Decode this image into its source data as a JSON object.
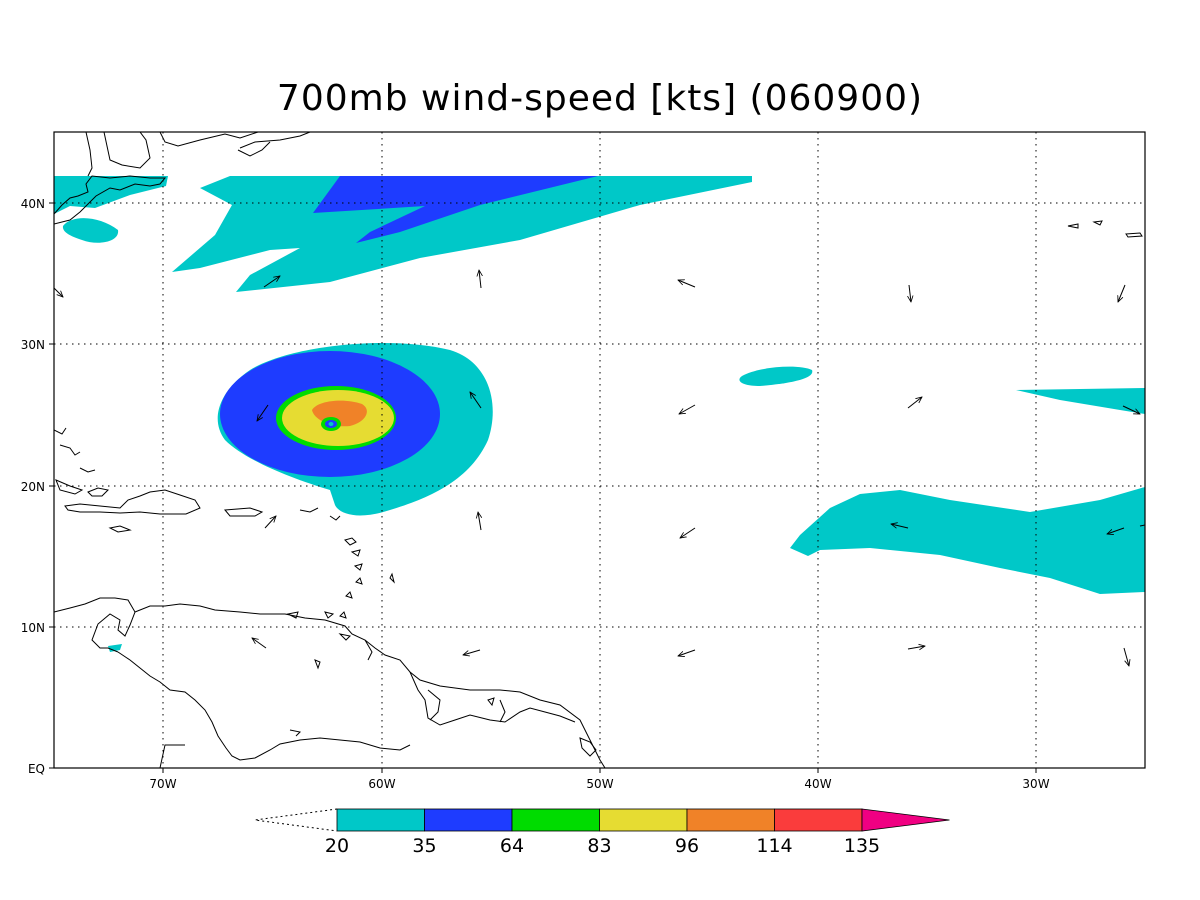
{
  "title": "700mb wind-speed [kts] (060900)",
  "map": {
    "x_ticks": [
      "70W",
      "60W",
      "50W",
      "40W",
      "30W"
    ],
    "y_ticks": [
      "40N",
      "30N",
      "20N",
      "10N",
      "EQ"
    ],
    "grid": "dotted",
    "frame_color": "#000000"
  },
  "colorbar": {
    "thresholds": [
      "20",
      "35",
      "64",
      "83",
      "96",
      "114",
      "135"
    ],
    "bins": [
      {
        "color": "#00c8c8"
      },
      {
        "color": "#1e3cff"
      },
      {
        "color": "#00dc00"
      },
      {
        "color": "#e6dc32"
      },
      {
        "color": "#f08228"
      },
      {
        "color": "#fa3c3c"
      },
      {
        "color": "#f00082"
      }
    ],
    "below_min": "none"
  },
  "icons": {
    "wind_vectors": "arrow-icon"
  }
}
